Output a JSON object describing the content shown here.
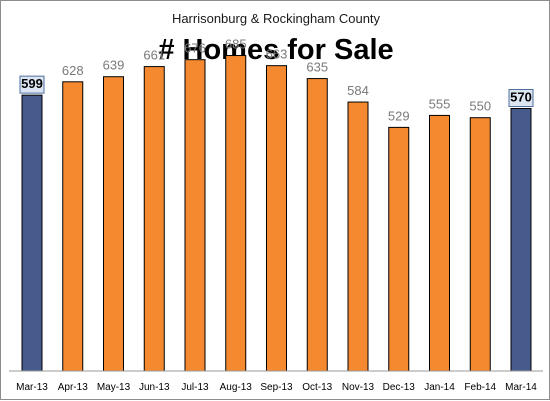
{
  "chart_data": {
    "type": "bar",
    "title": "# Homes for Sale",
    "subtitle": "Harrisonburg & Rockingham County",
    "xlabel": "",
    "ylabel": "",
    "categories": [
      "Mar-13",
      "Apr-13",
      "May-13",
      "Jun-13",
      "Jul-13",
      "Aug-13",
      "Sep-13",
      "Oct-13",
      "Nov-13",
      "Dec-13",
      "Jan-14",
      "Feb-14",
      "Mar-14"
    ],
    "values": [
      599,
      628,
      639,
      661,
      676,
      685,
      663,
      635,
      584,
      529,
      555,
      550,
      570
    ],
    "value_labels": [
      "599",
      "628",
      "639",
      "661",
      "676",
      "685",
      "663",
      "635",
      "584",
      "529",
      "555",
      "550",
      "570"
    ],
    "highlighted_categories": [
      "Mar-13",
      "Mar-14"
    ],
    "ylim": [
      0,
      760
    ],
    "grid": false,
    "legend": "none",
    "colors": {
      "bar": "#f5892f",
      "bar_highlight": "#465a8c",
      "bar_outline": "#000000",
      "label_box_fill": "#dce6f2",
      "label_box_stroke": "#4f6f9f"
    }
  }
}
